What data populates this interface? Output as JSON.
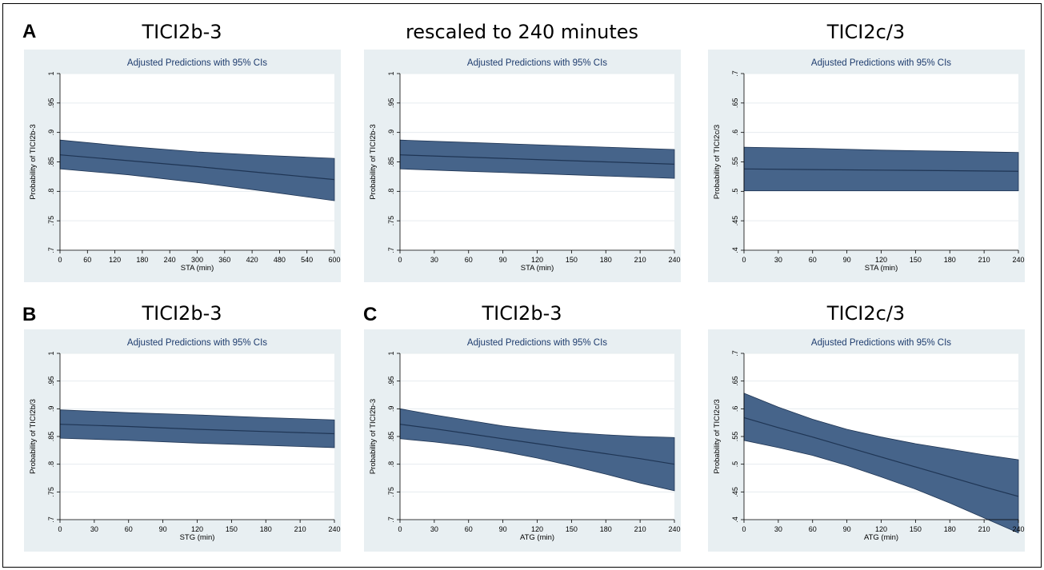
{
  "figure": {
    "panel_letters": [
      "A",
      "B",
      "C"
    ],
    "colors": {
      "band": "#46648A",
      "line": "#1F3554",
      "outer_bg": "#E8EFF2",
      "plot_bg": "#ffffff",
      "grid": "#E6ECEF",
      "title": "#1E3C6E"
    }
  },
  "chart_data": [
    {
      "type": "area",
      "panel_title": "TICI2b-3",
      "title": "Adjusted Predictions with 95% CIs",
      "xlabel": "STA (min)",
      "ylabel": "Probability of TICI2b-3",
      "xlim": [
        0,
        600
      ],
      "ylim": [
        0.7,
        1.0
      ],
      "xticks": [
        0,
        60,
        120,
        180,
        240,
        300,
        360,
        420,
        480,
        540,
        600
      ],
      "yticks": [
        0.7,
        0.75,
        0.8,
        0.85,
        0.9,
        0.95,
        1
      ],
      "ytick_labels": [
        ".7",
        ".75",
        ".8",
        ".85",
        ".9",
        ".95",
        "1"
      ],
      "grid": true,
      "x": [
        0,
        150,
        300,
        450,
        600
      ],
      "estimate": [
        0.862,
        0.852,
        0.842,
        0.831,
        0.82
      ],
      "ci_lower": [
        0.838,
        0.828,
        0.815,
        0.8,
        0.784
      ],
      "ci_upper": [
        0.887,
        0.876,
        0.867,
        0.861,
        0.856
      ]
    },
    {
      "type": "area",
      "panel_title": "rescaled to 240 minutes",
      "title": "Adjusted Predictions with 95% CIs",
      "xlabel": "STA (min)",
      "ylabel": "Probability of TICI2b-3",
      "xlim": [
        0,
        240
      ],
      "ylim": [
        0.7,
        1.0
      ],
      "xticks": [
        0,
        30,
        60,
        90,
        120,
        150,
        180,
        210,
        240
      ],
      "yticks": [
        0.7,
        0.75,
        0.8,
        0.85,
        0.9,
        0.95,
        1
      ],
      "ytick_labels": [
        ".7",
        ".75",
        ".8",
        ".85",
        ".9",
        ".95",
        "1"
      ],
      "grid": true,
      "x": [
        0,
        60,
        120,
        180,
        240
      ],
      "estimate": [
        0.862,
        0.858,
        0.854,
        0.85,
        0.846
      ],
      "ci_lower": [
        0.838,
        0.834,
        0.83,
        0.826,
        0.822
      ],
      "ci_upper": [
        0.887,
        0.883,
        0.879,
        0.875,
        0.871
      ]
    },
    {
      "type": "area",
      "panel_title": "TICI2c/3",
      "title": "Adjusted Predictions with 95% CIs",
      "xlabel": "STA (min)",
      "ylabel": "Probability of TICI2c/3",
      "xlim": [
        0,
        240
      ],
      "ylim": [
        0.4,
        0.7
      ],
      "xticks": [
        0,
        30,
        60,
        90,
        120,
        150,
        180,
        210,
        240
      ],
      "yticks": [
        0.4,
        0.45,
        0.5,
        0.55,
        0.6,
        0.65,
        0.7
      ],
      "ytick_labels": [
        ".4",
        ".45",
        ".5",
        ".55",
        ".6",
        ".65",
        ".7"
      ],
      "grid": true,
      "x": [
        0,
        60,
        120,
        180,
        240
      ],
      "estimate": [
        0.538,
        0.537,
        0.536,
        0.535,
        0.534
      ],
      "ci_lower": [
        0.501,
        0.501,
        0.501,
        0.501,
        0.501
      ],
      "ci_upper": [
        0.575,
        0.573,
        0.57,
        0.568,
        0.566
      ]
    },
    {
      "type": "area",
      "panel_title": "TICI2b-3",
      "title": "Adjusted Predictions with 95% CIs",
      "xlabel": "STG (min)",
      "ylabel": "Probability of TICI2b/3",
      "xlim": [
        0,
        240
      ],
      "ylim": [
        0.7,
        1.0
      ],
      "xticks": [
        0,
        30,
        60,
        90,
        120,
        150,
        180,
        210,
        240
      ],
      "yticks": [
        0.7,
        0.75,
        0.8,
        0.85,
        0.9,
        0.95,
        1
      ],
      "ytick_labels": [
        ".7",
        ".75",
        ".8",
        ".85",
        ".9",
        ".95",
        "1"
      ],
      "grid": true,
      "x": [
        0,
        60,
        120,
        180,
        240
      ],
      "estimate": [
        0.872,
        0.868,
        0.863,
        0.859,
        0.855
      ],
      "ci_lower": [
        0.847,
        0.843,
        0.838,
        0.834,
        0.83
      ],
      "ci_upper": [
        0.898,
        0.893,
        0.889,
        0.884,
        0.88
      ]
    },
    {
      "type": "area",
      "panel_title": "TICI2b-3",
      "title": "Adjusted Predictions with 95% CIs",
      "xlabel": "ATG (min)",
      "ylabel": "Probability of TICI2b-3",
      "xlim": [
        0,
        240
      ],
      "ylim": [
        0.7,
        1.0
      ],
      "xticks": [
        0,
        30,
        60,
        90,
        120,
        150,
        180,
        210,
        240
      ],
      "yticks": [
        0.7,
        0.75,
        0.8,
        0.85,
        0.9,
        0.95,
        1
      ],
      "ytick_labels": [
        ".7",
        ".75",
        ".8",
        ".85",
        ".9",
        ".95",
        "1"
      ],
      "grid": true,
      "x": [
        0,
        30,
        60,
        90,
        120,
        150,
        180,
        210,
        240
      ],
      "estimate": [
        0.872,
        0.864,
        0.855,
        0.846,
        0.837,
        0.828,
        0.819,
        0.81,
        0.8
      ],
      "ci_lower": [
        0.846,
        0.84,
        0.833,
        0.823,
        0.811,
        0.797,
        0.782,
        0.766,
        0.752
      ],
      "ci_upper": [
        0.9,
        0.889,
        0.879,
        0.869,
        0.862,
        0.857,
        0.853,
        0.85,
        0.848
      ]
    },
    {
      "type": "area",
      "panel_title": "TICI2c/3",
      "title": "Adjusted Predictions with 95% CIs",
      "xlabel": "ATG (min)",
      "ylabel": "Probability of TICI2c/3",
      "xlim": [
        0,
        240
      ],
      "ylim": [
        0.4,
        0.7
      ],
      "xticks": [
        0,
        30,
        60,
        90,
        120,
        150,
        180,
        210,
        240
      ],
      "yticks": [
        0.4,
        0.45,
        0.5,
        0.55,
        0.6,
        0.65,
        0.7
      ],
      "ytick_labels": [
        ".4",
        ".45",
        ".5",
        ".55",
        ".6",
        ".65",
        ".7"
      ],
      "grid": true,
      "x": [
        0,
        30,
        60,
        90,
        120,
        150,
        180,
        210,
        240
      ],
      "estimate": [
        0.584,
        0.566,
        0.549,
        0.531,
        0.513,
        0.495,
        0.477,
        0.459,
        0.442
      ],
      "ci_lower": [
        0.543,
        0.53,
        0.516,
        0.498,
        0.477,
        0.455,
        0.43,
        0.403,
        0.376
      ],
      "ci_upper": [
        0.628,
        0.603,
        0.581,
        0.563,
        0.549,
        0.537,
        0.527,
        0.517,
        0.508
      ]
    }
  ]
}
